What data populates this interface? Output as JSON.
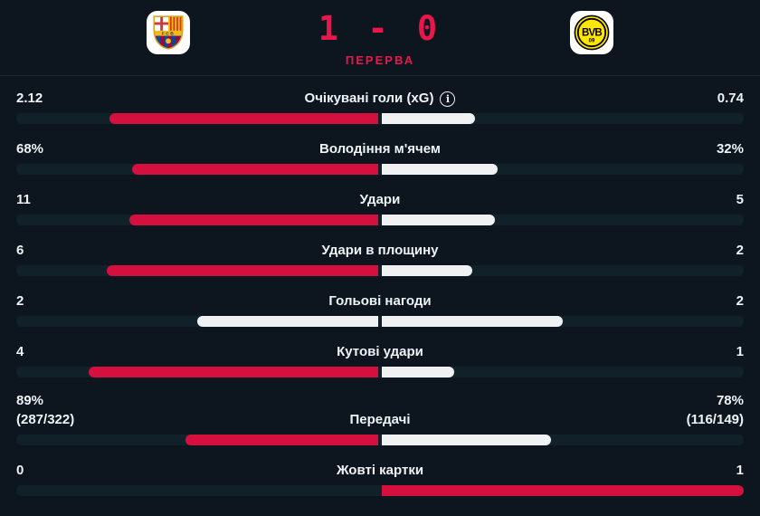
{
  "header": {
    "home_team": "FC Barcelona",
    "away_team": "Borussia Dortmund",
    "home_badge_text": "FCB",
    "away_badge_text": "BVB",
    "away_badge_year": "09",
    "score": "1 - 0",
    "status": "ПЕРЕРВА"
  },
  "colors": {
    "background": "#0d161e",
    "track": "#102129",
    "accent_red": "#d50f3e",
    "score_red": "#e8174b",
    "neutral_white": "#f0f1f3"
  },
  "icons": {
    "info": "i"
  },
  "stats": [
    {
      "label": "Очікувані голи (xG)",
      "info": true,
      "home": "2.12",
      "away": "0.74",
      "home_num": 2.12,
      "away_num": 0.74
    },
    {
      "label": "Володіння м'ячем",
      "home": "68%",
      "away": "32%",
      "home_num": 68,
      "away_num": 32
    },
    {
      "label": "Удари",
      "home": "11",
      "away": "5",
      "home_num": 11,
      "away_num": 5
    },
    {
      "label": "Удари в площину",
      "home": "6",
      "away": "2",
      "home_num": 6,
      "away_num": 2
    },
    {
      "label": "Гольові нагоди",
      "home": "2",
      "away": "2",
      "home_num": 2,
      "away_num": 2
    },
    {
      "label": "Кутові удари",
      "home": "4",
      "away": "1",
      "home_num": 4,
      "away_num": 1
    },
    {
      "label": "Передачі",
      "home": "89%",
      "away": "78%",
      "home_sub": "(287/322)",
      "away_sub": "(116/149)",
      "home_num": 89,
      "away_num": 78
    },
    {
      "label": "Жовті картки",
      "home": "0",
      "away": "1",
      "home_num": 0,
      "away_num": 1
    }
  ]
}
